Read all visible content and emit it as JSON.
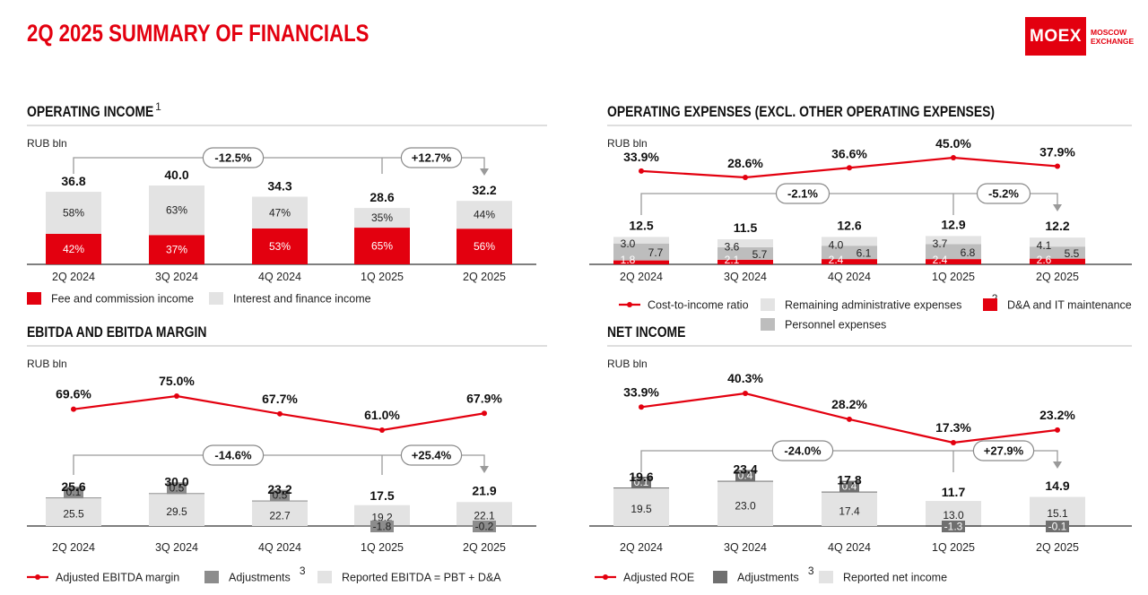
{
  "page_title": "2Q 2025 SUMMARY OF FINANCIALS",
  "logo": {
    "mark": "MOEX",
    "sub": "MOSCOW\nEXCHANGE"
  },
  "colors": {
    "red": "#e3000f",
    "light": "#e3e3e3",
    "mid": "#bdbdbd",
    "dark": "#8c8c8c",
    "darker": "#6f6f6f"
  },
  "chart_data": [
    {
      "id": "operating_income",
      "type": "bar",
      "title": "OPERATING INCOME",
      "title_note": "1",
      "unit": "RUB bln",
      "categories": [
        "2Q 2024",
        "3Q 2024",
        "4Q 2024",
        "1Q 2025",
        "2Q 2025"
      ],
      "totals": [
        "36.8",
        "40.0",
        "34.3",
        "28.6",
        "32.2"
      ],
      "series": [
        {
          "name": "Fee and commission income",
          "share_labels": [
            "42%",
            "37%",
            "53%",
            "65%",
            "56%"
          ],
          "share": [
            42,
            37,
            53,
            65,
            56
          ]
        },
        {
          "name": "Interest and finance income",
          "share_labels": [
            "58%",
            "63%",
            "47%",
            "35%",
            "44%"
          ],
          "share": [
            58,
            63,
            47,
            35,
            44
          ]
        }
      ],
      "total_values": [
        36.8,
        40.0,
        34.3,
        28.6,
        32.2
      ],
      "comparisons": [
        {
          "label": "-12.5%",
          "from": "2Q 2024",
          "to": "1Q 2025"
        },
        {
          "label": "+12.7%",
          "from": "1Q 2025",
          "to": "2Q 2025"
        }
      ],
      "legend": [
        "Fee and commission income",
        "Interest and finance income"
      ]
    },
    {
      "id": "operating_expenses",
      "type": "bar",
      "title": "OPERATING EXPENSES (EXCL. OTHER OPERATING EXPENSES)",
      "unit": "RUB bln",
      "categories": [
        "2Q 2024",
        "3Q 2024",
        "4Q 2024",
        "1Q 2025",
        "2Q 2025"
      ],
      "totals": [
        "12.5",
        "11.5",
        "12.6",
        "12.9",
        "12.2"
      ],
      "total_values": [
        12.5,
        11.5,
        12.6,
        12.9,
        12.2
      ],
      "series": [
        {
          "name": "D&A and IT maintenance",
          "labels": [
            "1.8",
            "2.1",
            "2.4",
            "2.4",
            "2.6"
          ],
          "values": [
            1.8,
            2.1,
            2.4,
            2.4,
            2.6
          ]
        },
        {
          "name": "Personnel expenses",
          "labels": [
            "7.7",
            "5.7",
            "6.1",
            "6.8",
            "5.5"
          ],
          "values": [
            7.7,
            5.7,
            6.1,
            6.8,
            5.5
          ]
        },
        {
          "name": "Remaining administrative expenses",
          "labels": [
            "3.0",
            "3.6",
            "4.0",
            "3.7",
            "4.1"
          ],
          "values": [
            3.0,
            3.6,
            4.0,
            3.7,
            4.1
          ]
        }
      ],
      "line": {
        "name": "Cost-to-income ratio",
        "labels": [
          "33.9%",
          "28.6%",
          "36.6%",
          "45.0%",
          "37.9%"
        ],
        "values": [
          33.9,
          28.6,
          36.6,
          45.0,
          37.9
        ]
      },
      "comparisons": [
        {
          "label": "-2.1%",
          "from": "2Q 2024",
          "to": "1Q 2025"
        },
        {
          "label": "-5.2%",
          "from": "1Q 2025",
          "to": "2Q 2025"
        }
      ],
      "legend": [
        "Cost-to-income ratio",
        "Remaining administrative expenses",
        "D&A and IT maintenance",
        "Personnel expenses"
      ],
      "legend_note": "2"
    },
    {
      "id": "ebitda",
      "type": "bar",
      "title": "EBITDA AND EBITDA MARGIN",
      "unit": "RUB bln",
      "categories": [
        "2Q 2024",
        "3Q 2024",
        "4Q 2024",
        "1Q 2025",
        "2Q 2025"
      ],
      "totals": [
        "25.6",
        "30.0",
        "23.2",
        "17.5",
        "21.9"
      ],
      "total_values": [
        25.6,
        30.0,
        23.2,
        17.5,
        21.9
      ],
      "series": [
        {
          "name": "Reported EBITDA = PBT + D&A",
          "labels": [
            "25.5",
            "29.5",
            "22.7",
            "19.2",
            "22.1"
          ],
          "values": [
            25.5,
            29.5,
            22.7,
            19.2,
            22.1
          ]
        },
        {
          "name": "Adjustments",
          "labels": [
            "0.1",
            "0.5",
            "0.5",
            "-1.8",
            "-0.2"
          ],
          "values": [
            0.1,
            0.5,
            0.5,
            -1.8,
            -0.2
          ]
        }
      ],
      "line": {
        "name": "Adjusted EBITDA margin",
        "labels": [
          "69.6%",
          "75.0%",
          "67.7%",
          "61.0%",
          "67.9%"
        ],
        "values": [
          69.6,
          75.0,
          67.7,
          61.0,
          67.9
        ]
      },
      "comparisons": [
        {
          "label": "-14.6%",
          "from": "2Q 2024",
          "to": "1Q 2025"
        },
        {
          "label": "+25.4%",
          "from": "1Q 2025",
          "to": "2Q 2025"
        }
      ],
      "legend": [
        "Adjusted EBITDA margin",
        "Adjustments",
        "Reported EBITDA = PBT + D&A"
      ],
      "legend_note": "3"
    },
    {
      "id": "net_income",
      "type": "bar",
      "title": "NET INCOME",
      "unit": "RUB bln",
      "categories": [
        "2Q 2024",
        "3Q 2024",
        "4Q 2024",
        "1Q 2025",
        "2Q 2025"
      ],
      "totals": [
        "19.6",
        "23.4",
        "17.8",
        "11.7",
        "14.9"
      ],
      "total_values": [
        19.6,
        23.4,
        17.8,
        11.7,
        14.9
      ],
      "series": [
        {
          "name": "Reported net income",
          "labels": [
            "19.5",
            "23.0",
            "17.4",
            "13.0",
            "15.1"
          ],
          "values": [
            19.5,
            23.0,
            17.4,
            13.0,
            15.1
          ]
        },
        {
          "name": "Adjustments",
          "labels": [
            "0.1",
            "0.4",
            "0.4",
            "-1.3",
            "-0.1"
          ],
          "values": [
            0.1,
            0.4,
            0.4,
            -1.3,
            -0.1
          ]
        }
      ],
      "line": {
        "name": "Adjusted ROE",
        "labels": [
          "33.9%",
          "40.3%",
          "28.2%",
          "17.3%",
          "23.2%"
        ],
        "values": [
          33.9,
          40.3,
          28.2,
          17.3,
          23.2
        ]
      },
      "comparisons": [
        {
          "label": "-24.0%",
          "from": "2Q 2024",
          "to": "1Q 2025"
        },
        {
          "label": "+27.9%",
          "from": "1Q 2025",
          "to": "2Q 2025"
        }
      ],
      "legend": [
        "Adjusted ROE",
        "Adjustments",
        "Reported net income"
      ],
      "legend_note": "3"
    }
  ]
}
